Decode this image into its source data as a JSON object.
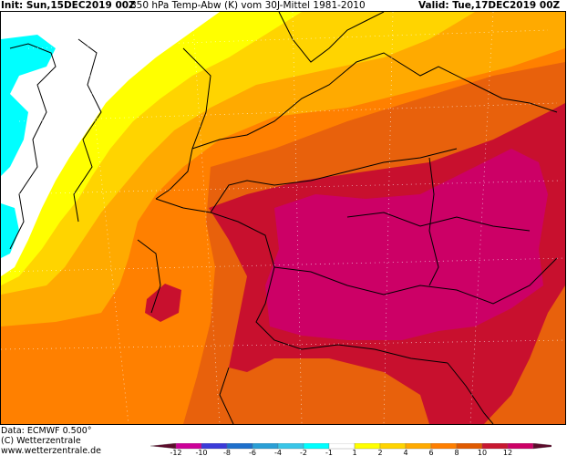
{
  "header": {
    "init": "Init: Sun,15DEC2019 00Z",
    "title": "850 hPa Temp-Abw (K) vom 30J-Mittel 1981-2010",
    "valid": "Valid: Tue,17DEC2019 00Z"
  },
  "footer": {
    "data_source": "Data: ECMWF  0.500°",
    "copyright": "(C) Wetterzentrale",
    "website": "www.wetterzentrale.de"
  },
  "legend": {
    "labels": [
      "-12",
      "-10",
      "-8",
      "-6",
      "-4",
      "-2",
      "-1",
      "1",
      "2",
      "4",
      "6",
      "8",
      "10",
      "12"
    ],
    "colors": [
      "#5c0b2b",
      "#cc0099",
      "#3b3bd9",
      "#1e6fcc",
      "#2a9fd6",
      "#39c6e8",
      "#00ffff",
      "#ffffff",
      "#ffff00",
      "#ffd400",
      "#ffaa00",
      "#ff7f00",
      "#e05a00",
      "#c81830",
      "#cc0066",
      "#5c0b2b"
    ]
  },
  "map": {
    "field_colors": {
      "cyan": "#00ffff",
      "white": "#ffffff",
      "yellow": "#ffff00",
      "gold": "#ffd400",
      "orange_light": "#ffaa00",
      "orange": "#ff8000",
      "orange_dark": "#e8610c",
      "red": "#c8102e",
      "magenta": "#cc0066"
    }
  }
}
